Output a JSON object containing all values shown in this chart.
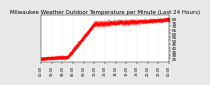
{
  "title": "Milwaukee Weather Outdoor Temperature per Minute (Last 24 Hours)",
  "title_fontsize": 4.0,
  "bg_color": "#e8e8e8",
  "plot_bg_color": "#ffffff",
  "line_color": "#ff0000",
  "ylim": [
    20,
    85
  ],
  "yticks": [
    25,
    30,
    35,
    40,
    45,
    50,
    55,
    60,
    65,
    70,
    75,
    80
  ],
  "ytick_fontsize": 3.0,
  "xtick_fontsize": 2.5,
  "grid_color": "#999999",
  "num_points": 1440,
  "xtick_interval": 120
}
